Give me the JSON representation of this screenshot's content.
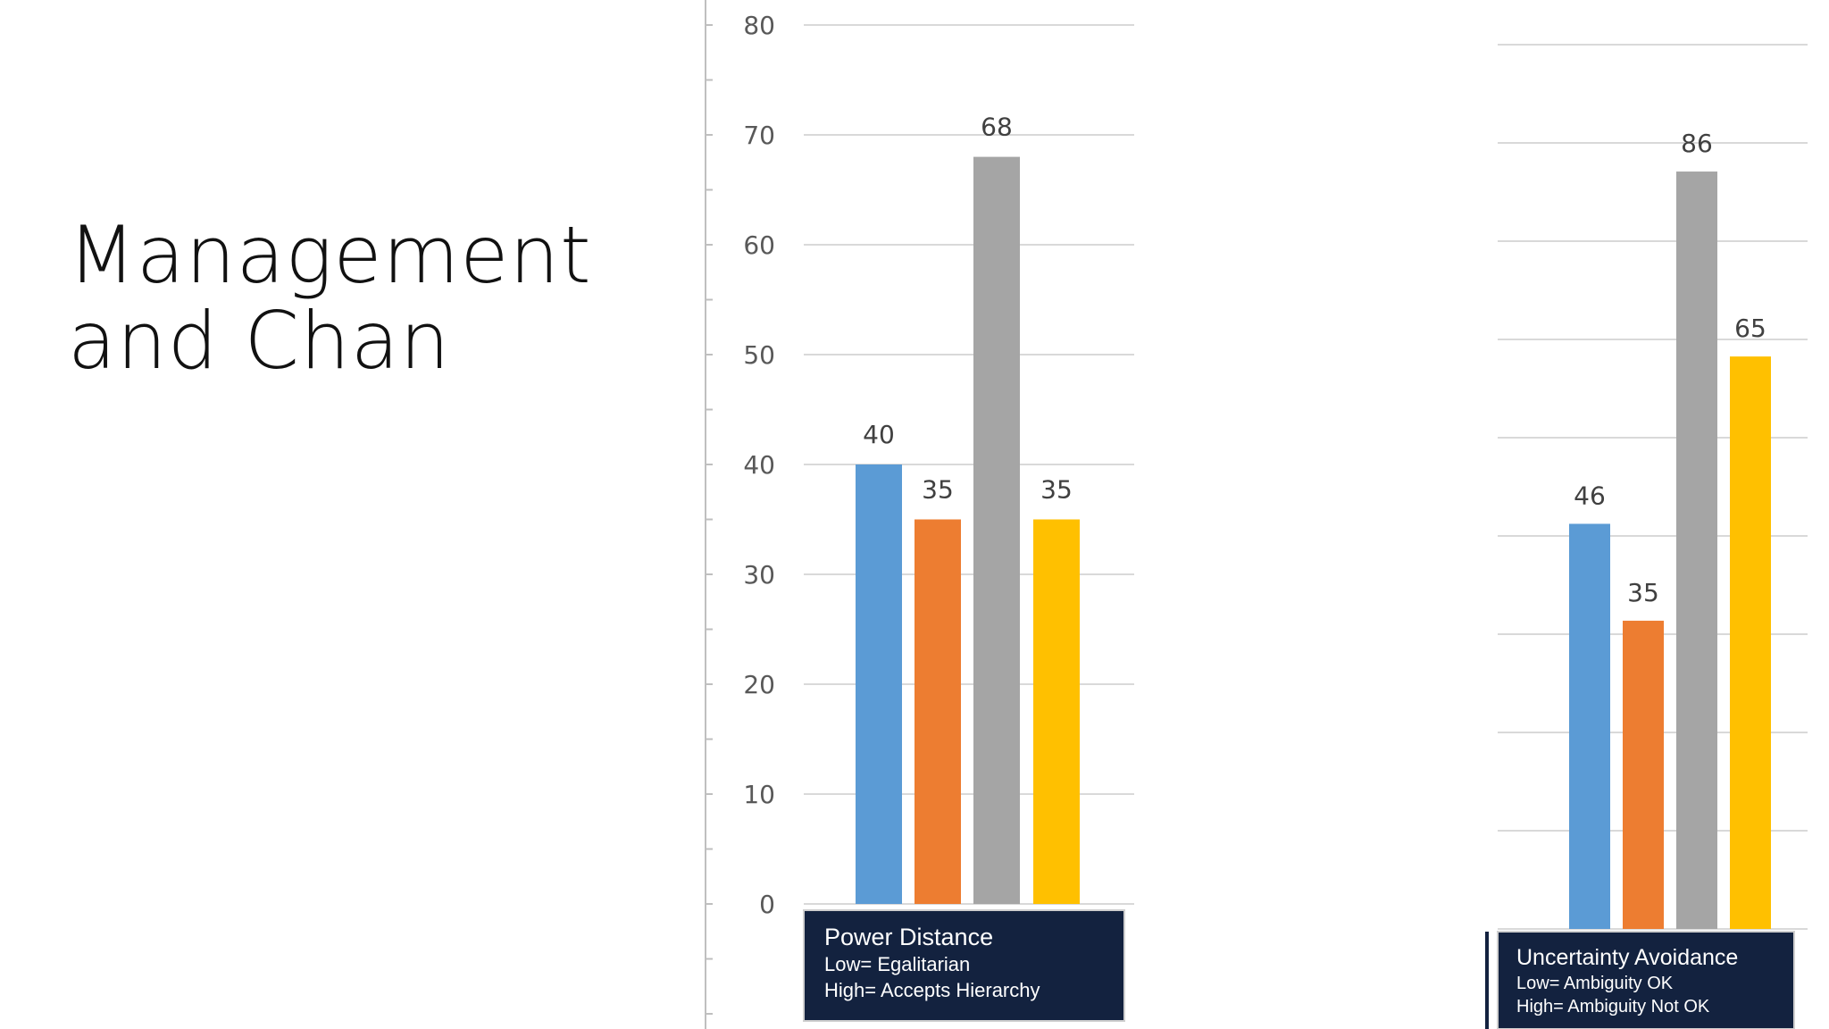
{
  "slide": {
    "title_lines": [
      "Management",
      "and Chan"
    ]
  },
  "colors": {
    "series": [
      "#5b9bd5",
      "#ed7d31",
      "#a5a5a5",
      "#ffc000"
    ],
    "caption_bg": "#13223f",
    "grid": "#d9d9d9",
    "axis": "#bfbfbf"
  },
  "chart_data": [
    {
      "type": "bar",
      "id": "power-distance",
      "yticks": [
        0,
        10,
        20,
        30,
        40,
        50,
        60,
        70,
        80
      ],
      "ylim": [
        0,
        80
      ],
      "values": [
        40,
        35,
        68,
        35
      ],
      "data_labels": [
        "40",
        "35",
        "68",
        "35"
      ],
      "caption": {
        "title": "Power Distance",
        "line1": "Low= Egalitarian",
        "line2": "High= Accepts Hierarchy"
      }
    },
    {
      "type": "bar",
      "id": "uncertainty-avoidance",
      "ylim": [
        0,
        100
      ],
      "values": [
        46,
        35,
        86,
        65
      ],
      "data_labels": [
        "46",
        "35",
        "86",
        "65"
      ],
      "caption": {
        "title": "Uncertainty Avoidance",
        "line1": "Low= Ambiguity OK",
        "line2": "High= Ambiguity Not OK"
      }
    }
  ]
}
